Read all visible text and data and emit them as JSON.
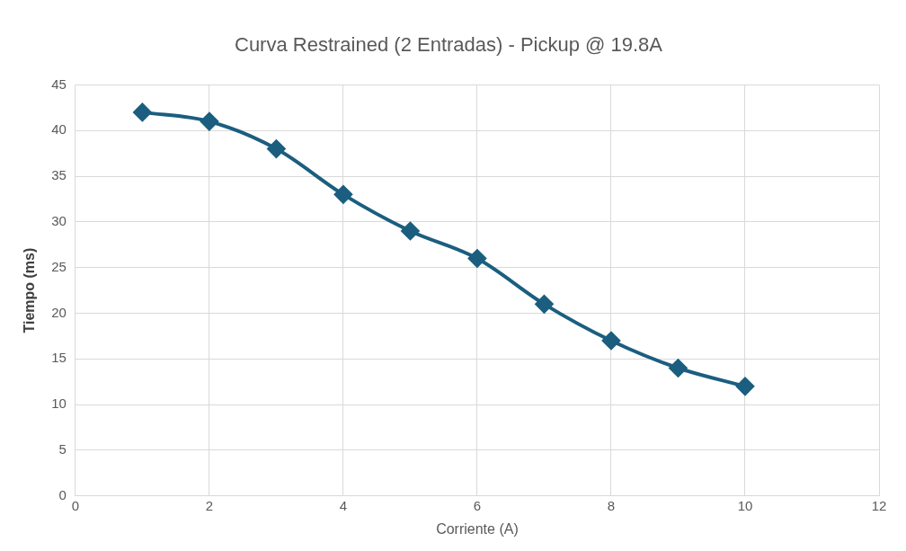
{
  "chart_data": {
    "type": "line",
    "title": "Curva Restrained (2 Entradas) - Pickup @ 19.8A",
    "xlabel": "Corriente (A)",
    "ylabel": "Tiempo (ms)",
    "x": [
      1,
      2,
      3,
      4,
      5,
      6,
      7,
      8,
      9,
      10
    ],
    "series": [
      {
        "color": "#1b5e7f",
        "values": [
          42,
          41,
          38,
          33,
          29,
          26,
          21,
          17,
          14,
          12
        ]
      }
    ],
    "xlim": [
      0,
      12
    ],
    "xticks": [
      0,
      2,
      4,
      6,
      8,
      10,
      12
    ],
    "ylim": [
      0,
      45
    ],
    "yticks": [
      0,
      5,
      10,
      15,
      20,
      25,
      30,
      35,
      40,
      45
    ],
    "grid": true,
    "legend": false,
    "marker": "diamond",
    "line_style": "solid"
  }
}
